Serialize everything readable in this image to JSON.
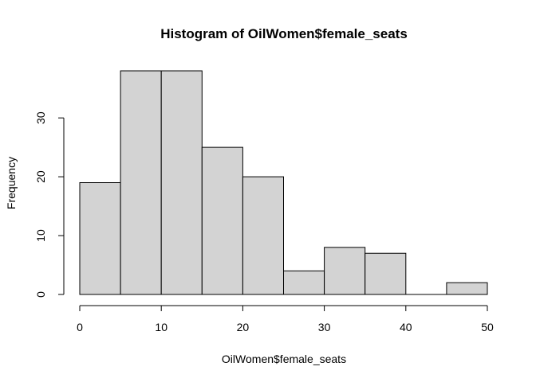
{
  "chart_data": {
    "type": "bar",
    "title": "Histogram of OilWomen$female_seats",
    "xlabel": "OilWomen$female_seats",
    "ylabel": "Frequency",
    "bins": [
      [
        0,
        5
      ],
      [
        5,
        10
      ],
      [
        10,
        15
      ],
      [
        15,
        20
      ],
      [
        20,
        25
      ],
      [
        25,
        30
      ],
      [
        30,
        35
      ],
      [
        35,
        40
      ],
      [
        40,
        45
      ],
      [
        45,
        50
      ]
    ],
    "values": [
      19,
      38,
      38,
      25,
      20,
      4,
      8,
      7,
      0,
      2
    ],
    "xlim": [
      0,
      50
    ],
    "ylim": [
      0,
      38
    ],
    "x_ticks": [
      0,
      10,
      20,
      30,
      40,
      50
    ],
    "y_ticks": [
      0,
      10,
      20,
      30
    ],
    "bar_color": "#d3d3d3",
    "grid": false
  }
}
